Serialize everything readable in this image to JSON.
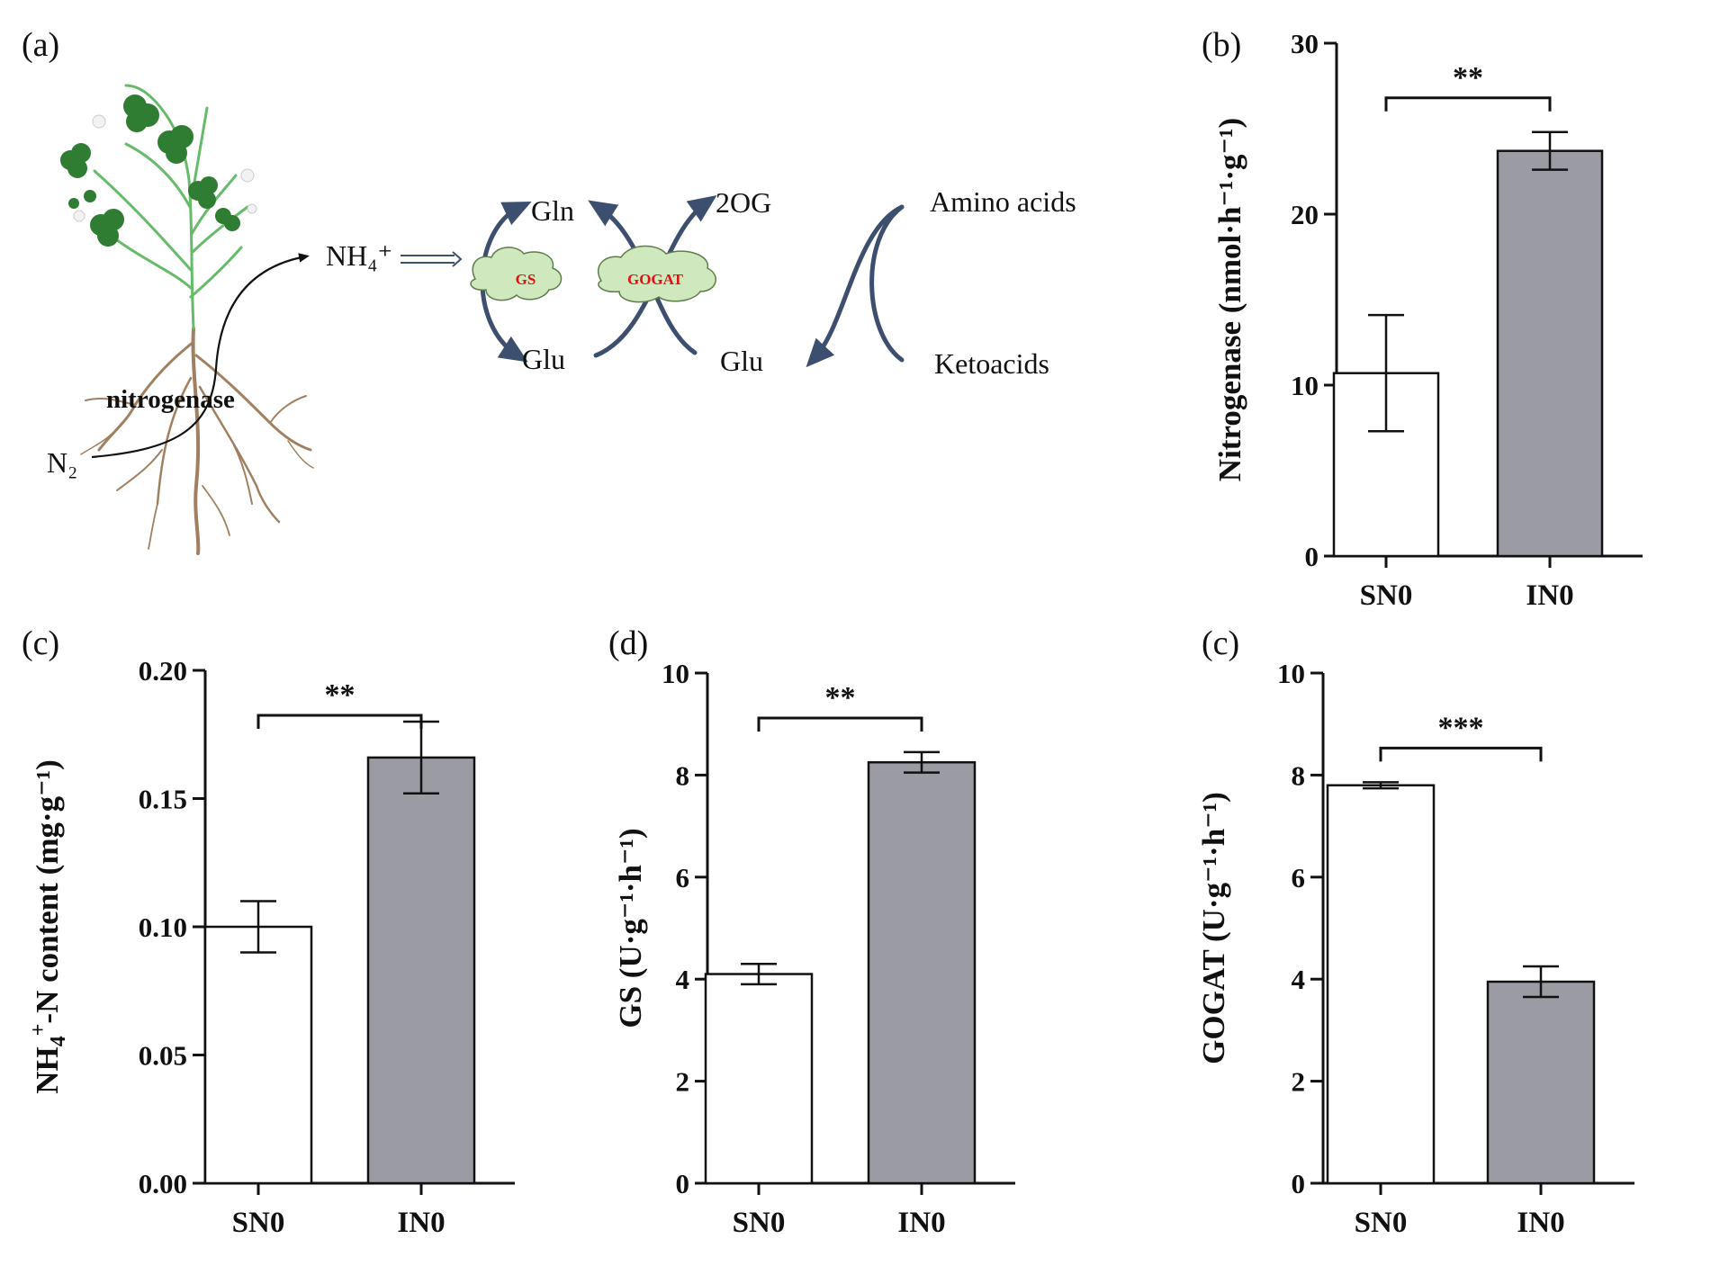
{
  "diagram": {
    "panel_label": "(a)",
    "labels": {
      "nh4": "NH₄⁺",
      "n2": "N₂",
      "nitrogenase": "nitrogenase",
      "gln": "Gln",
      "glu_left": "Glu",
      "gs": "GS",
      "gogat": "GOGAT",
      "two_og": "2OG",
      "glu_right": "Glu",
      "amino_acids": "Amino acids",
      "ketoacids": "Ketoacids"
    },
    "colors": {
      "leaf": "#2e7d32",
      "stem": "#66bb6a",
      "root": "#a08060",
      "cloud": "#cfe8bd",
      "arrow": "#3d4f6e",
      "enzyme_text": "#e01010"
    }
  },
  "chart_data": [
    {
      "type": "bar",
      "panel_label": "(b)",
      "categories": [
        "SN0",
        "IN0"
      ],
      "values": [
        10.7,
        23.7
      ],
      "errors": [
        3.4,
        1.1
      ],
      "ylabel": "Nitrogenase (nmol·h⁻¹·g⁻¹)",
      "ylim": [
        0,
        30
      ],
      "yticks": [
        "0",
        "10",
        "20",
        "30"
      ],
      "significance": "**",
      "colors": [
        "#ffffff",
        "#9b9ba3"
      ]
    },
    {
      "type": "bar",
      "panel_label": "(c)",
      "categories": [
        "SN0",
        "IN0"
      ],
      "values": [
        0.1,
        0.166
      ],
      "errors": [
        0.01,
        0.014
      ],
      "ylabel_parts": {
        "main": "NH",
        "sub": "4",
        "sup": "+",
        "rest": "-N content (mg·g⁻¹)"
      },
      "ylim": [
        0,
        0.2
      ],
      "yticks": [
        "0.00",
        "0.05",
        "0.10",
        "0.15",
        "0.20"
      ],
      "significance": "**",
      "colors": [
        "#ffffff",
        "#9b9ba3"
      ]
    },
    {
      "type": "bar",
      "panel_label": "(d)",
      "categories": [
        "SN0",
        "IN0"
      ],
      "values": [
        4.1,
        8.25
      ],
      "errors": [
        0.2,
        0.2
      ],
      "ylabel": "GS (U·g⁻¹·h⁻¹)",
      "ylim": [
        0,
        10
      ],
      "yticks": [
        "0",
        "2",
        "4",
        "6",
        "8",
        "10"
      ],
      "significance": "**",
      "colors": [
        "#ffffff",
        "#9b9ba3"
      ]
    },
    {
      "type": "bar",
      "panel_label": "(c)",
      "categories": [
        "SN0",
        "IN0"
      ],
      "values": [
        7.8,
        3.95
      ],
      "errors": [
        0.06,
        0.3
      ],
      "ylabel": "GOGAT (U·g⁻¹·h⁻¹)",
      "ylim": [
        0,
        10
      ],
      "yticks": [
        "0",
        "2",
        "4",
        "6",
        "8",
        "10"
      ],
      "significance": "***",
      "colors": [
        "#ffffff",
        "#9b9ba3"
      ]
    }
  ]
}
